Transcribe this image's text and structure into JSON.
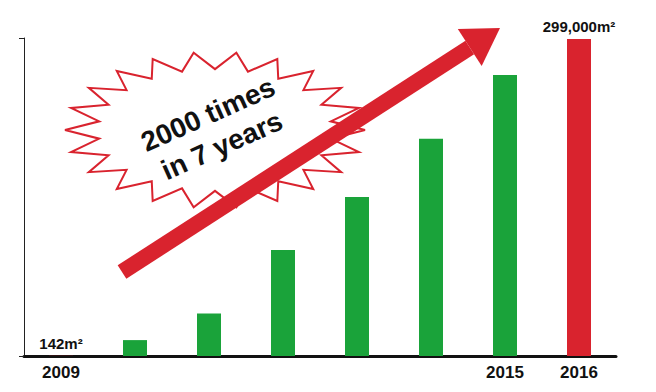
{
  "chart_data": {
    "type": "bar",
    "categories": [
      "2009",
      null,
      null,
      null,
      null,
      null,
      "2015",
      "2016"
    ],
    "values": [
      142,
      15000,
      40000,
      100000,
      150000,
      205000,
      265000,
      299000
    ],
    "value_labels": [
      "142m²",
      null,
      null,
      null,
      null,
      null,
      null,
      "299,000m²"
    ],
    "colors": [
      "#d9232e",
      "#1aa33a",
      "#1aa33a",
      "#1aa33a",
      "#1aa33a",
      "#1aa33a",
      "#1aa33a",
      "#d9232e"
    ],
    "ylim": [
      0,
      300000
    ],
    "yticks": [
      0,
      300000
    ],
    "grid": false,
    "tick_labels": "x",
    "data_labels": true,
    "annotation": [
      "2000 times",
      "in 7 years"
    ]
  }
}
